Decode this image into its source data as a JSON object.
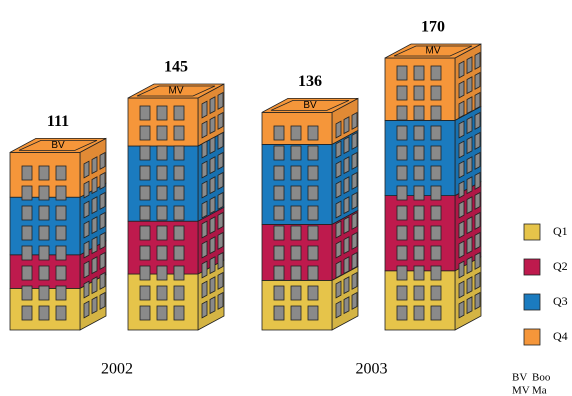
{
  "chart_data": {
    "type": "stacked_building",
    "groups": [
      "2002",
      "2003"
    ],
    "categories": [
      "BV",
      "MV",
      "BV",
      "MV"
    ],
    "totals": [
      111,
      145,
      136,
      170
    ],
    "series": [
      {
        "name": "Q1",
        "color": "#e6c44a",
        "values": [
          26,
          35,
          31,
          37
        ]
      },
      {
        "name": "Q2",
        "color": "#be1a4d",
        "values": [
          21,
          33,
          35,
          47
        ]
      },
      {
        "name": "Q3",
        "color": "#1b7bbf",
        "values": [
          36,
          47,
          50,
          47
        ]
      },
      {
        "name": "Q4",
        "color": "#f5963a",
        "values": [
          28,
          30,
          20,
          39
        ]
      }
    ],
    "abbreviations": [
      {
        "code": "BV",
        "text": "Boo"
      },
      {
        "code": "MV",
        "text": "Ma"
      }
    ]
  }
}
